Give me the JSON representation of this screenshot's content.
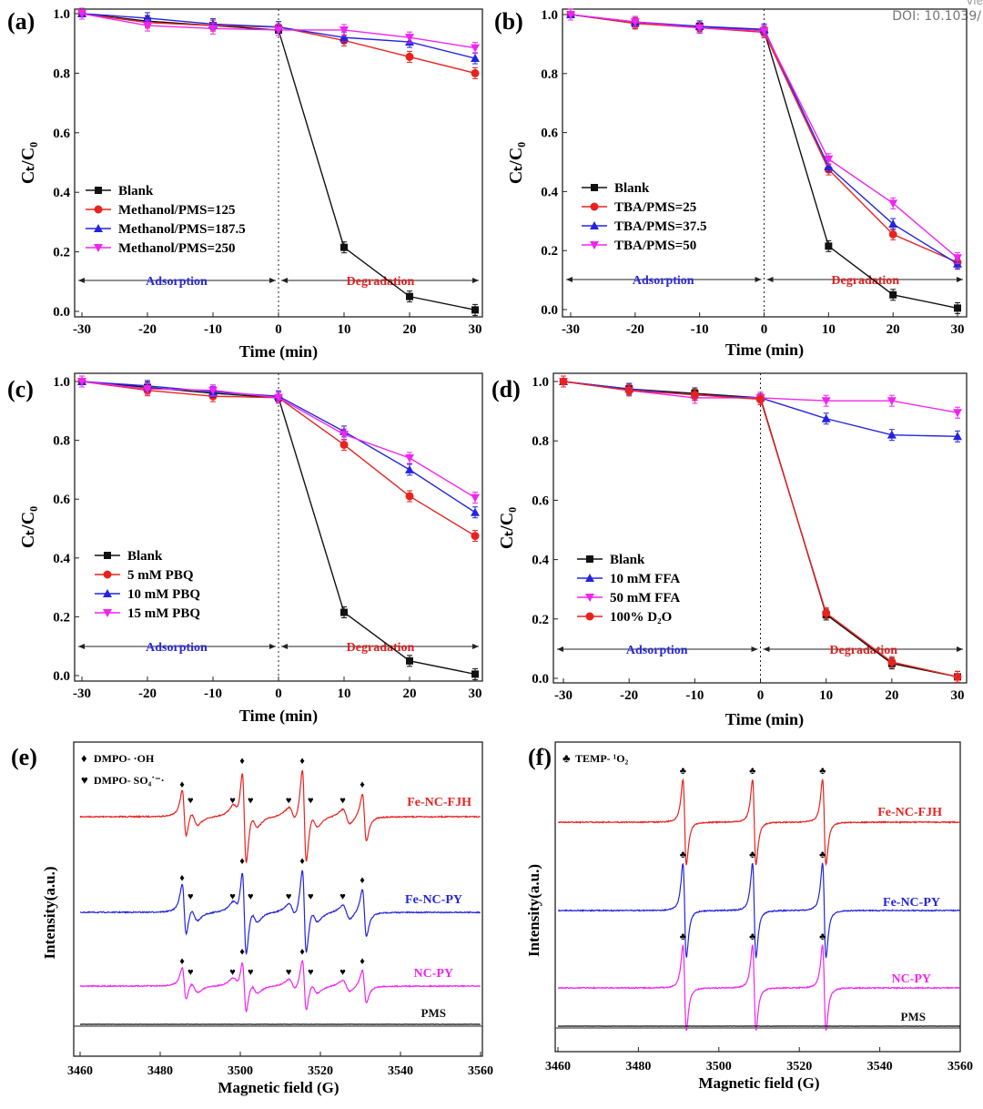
{
  "header": {
    "doi": "DOI: 10.1039/",
    "view_fragment": "Vie"
  },
  "colors": {
    "black": "#111111",
    "red": "#e8231f",
    "blue": "#2424e0",
    "magenta": "#f025f0",
    "annotation_blue": "#2a2ad8",
    "annotation_red": "#e02020"
  },
  "chart_data": [
    {
      "panel": "(a)",
      "type": "line",
      "xlabel": "Time (min)",
      "ylabel": "Cₜ/C₀",
      "xlim": [
        -30,
        30
      ],
      "ylim": [
        0,
        1.0
      ],
      "xticks": [
        "-30",
        "-20",
        "-10",
        "0",
        "10",
        "20",
        "30"
      ],
      "yticks": [
        "0.0",
        "0.2",
        "0.4",
        "0.6",
        "0.8",
        "1.0"
      ],
      "x": [
        -30,
        -20,
        -10,
        0,
        10,
        20,
        30
      ],
      "series": [
        {
          "name": "Blank",
          "marker": "square",
          "color": "#111111",
          "values": [
            1.0,
            0.975,
            0.96,
            0.945,
            0.215,
            0.05,
            0.005
          ]
        },
        {
          "name": "Methanol/PMS=125",
          "marker": "circle",
          "color": "#e8231f",
          "values": [
            1.0,
            0.97,
            0.96,
            0.955,
            0.91,
            0.855,
            0.8
          ]
        },
        {
          "name": "Methanol/PMS=187.5",
          "marker": "triangle-up",
          "color": "#2424e0",
          "values": [
            1.0,
            0.985,
            0.965,
            0.955,
            0.92,
            0.905,
            0.85
          ]
        },
        {
          "name": "Methanol/PMS=250",
          "marker": "triangle-down",
          "color": "#f025f0",
          "values": [
            1.0,
            0.96,
            0.95,
            0.945,
            0.945,
            0.92,
            0.885
          ]
        }
      ],
      "annotations": {
        "left": "Adsorption",
        "right": "Degradation"
      },
      "legend": "middle-left"
    },
    {
      "panel": "(b)",
      "type": "line",
      "xlabel": "Time (min)",
      "ylabel": "Cₜ/C₀",
      "xlim": [
        -30,
        30
      ],
      "ylim": [
        0,
        1.0
      ],
      "xticks": [
        "-30",
        "-20",
        "-10",
        "0",
        "10",
        "20",
        "30"
      ],
      "yticks": [
        "0.0",
        "0.2",
        "0.4",
        "0.6",
        "0.8",
        "1.0"
      ],
      "x": [
        -30,
        -20,
        -10,
        0,
        10,
        20,
        30
      ],
      "series": [
        {
          "name": "Blank",
          "marker": "square",
          "color": "#111111",
          "values": [
            1.0,
            0.97,
            0.96,
            0.945,
            0.215,
            0.05,
            0.005
          ]
        },
        {
          "name": "TBA/PMS=25",
          "marker": "circle",
          "color": "#e8231f",
          "values": [
            1.0,
            0.97,
            0.955,
            0.94,
            0.475,
            0.255,
            0.16
          ]
        },
        {
          "name": "TBA/PMS=37.5",
          "marker": "triangle-up",
          "color": "#2424e0",
          "values": [
            1.0,
            0.975,
            0.96,
            0.95,
            0.485,
            0.29,
            0.155
          ]
        },
        {
          "name": "TBA/PMS=50",
          "marker": "triangle-down",
          "color": "#f025f0",
          "values": [
            1.0,
            0.975,
            0.955,
            0.945,
            0.51,
            0.36,
            0.175
          ]
        }
      ],
      "annotations": {
        "left": "Adsorption",
        "right": "Degradation"
      },
      "legend": "middle-left"
    },
    {
      "panel": "(c)",
      "type": "line",
      "xlabel": "Time (min)",
      "ylabel": "Cₜ/C₀",
      "xlim": [
        -30,
        30
      ],
      "ylim": [
        0,
        1.0
      ],
      "xticks": [
        "-30",
        "-20",
        "-10",
        "0",
        "10",
        "20",
        "30"
      ],
      "yticks": [
        "0.0",
        "0.2",
        "0.4",
        "0.6",
        "0.8",
        "1.0"
      ],
      "x": [
        -30,
        -20,
        -10,
        0,
        10,
        20,
        30
      ],
      "series": [
        {
          "name": "Blank",
          "marker": "square",
          "color": "#111111",
          "values": [
            1.0,
            0.98,
            0.96,
            0.945,
            0.215,
            0.05,
            0.005
          ]
        },
        {
          "name": "5 mM PBQ",
          "marker": "circle",
          "color": "#e8231f",
          "values": [
            1.0,
            0.97,
            0.95,
            0.945,
            0.785,
            0.61,
            0.475
          ]
        },
        {
          "name": "10 mM PBQ",
          "marker": "triangle-up",
          "color": "#2424e0",
          "values": [
            1.0,
            0.985,
            0.965,
            0.95,
            0.83,
            0.7,
            0.555
          ]
        },
        {
          "name": "15 mM PBQ",
          "marker": "triangle-down",
          "color": "#f025f0",
          "values": [
            1.0,
            0.975,
            0.97,
            0.945,
            0.82,
            0.74,
            0.605
          ]
        }
      ],
      "annotations": {
        "left": "Adsorption",
        "right": "Degradation"
      },
      "legend": "lower-left"
    },
    {
      "panel": "(d)",
      "type": "line",
      "xlabel": "Time (min)",
      "ylabel": "Cₜ/C₀",
      "xlim": [
        -30,
        30
      ],
      "ylim": [
        0,
        1.0
      ],
      "xticks": [
        "-30",
        "-20",
        "-10",
        "0",
        "10",
        "20",
        "30"
      ],
      "yticks": [
        "0.0",
        "0.2",
        "0.4",
        "0.6",
        "0.8",
        "1.0"
      ],
      "x": [
        -30,
        -20,
        -10,
        0,
        10,
        20,
        30
      ],
      "series": [
        {
          "name": "Blank",
          "marker": "square",
          "color": "#111111",
          "values": [
            1.0,
            0.975,
            0.96,
            0.945,
            0.215,
            0.05,
            0.005
          ]
        },
        {
          "name": "10 mM FFA",
          "marker": "triangle-up",
          "color": "#2424e0",
          "values": [
            1.0,
            0.975,
            0.955,
            0.945,
            0.875,
            0.82,
            0.815
          ]
        },
        {
          "name": "50 mM FFA",
          "marker": "triangle-down",
          "color": "#f025f0",
          "values": [
            1.0,
            0.97,
            0.945,
            0.945,
            0.935,
            0.935,
            0.895
          ]
        },
        {
          "name": "100% D₂O",
          "marker": "circle",
          "color": "#e8231f",
          "values": [
            1.0,
            0.97,
            0.955,
            0.94,
            0.22,
            0.055,
            0.005
          ]
        }
      ],
      "annotations": {
        "left": "Adsorption",
        "right": "Degradation"
      },
      "legend": "lower-left"
    },
    {
      "panel": "(e)",
      "type": "line",
      "xlabel": "Magnetic field (G)",
      "ylabel": "Intensity(a.u.)",
      "xlim": [
        3460,
        3560
      ],
      "xticks": [
        "3460",
        "3480",
        "3500",
        "3520",
        "3540",
        "3560"
      ],
      "legend_items": [
        {
          "symbol": "♦",
          "label": "DMPO- ·OH"
        },
        {
          "symbol": "♥",
          "label": "DMPO- SO₄˙⁻·"
        }
      ],
      "oh_peaks_G": [
        3486,
        3501,
        3516,
        3531
      ],
      "so4_peaks_G": [
        3488.5,
        3499,
        3503.5,
        3513,
        3518.5,
        3526.5
      ],
      "series": [
        {
          "name": "Fe-NC-FJH",
          "color": "#e8231f",
          "oh_rel": [
            0.5,
            1,
            1,
            0.5
          ],
          "so4_rel": 0.16
        },
        {
          "name": "Fe-NC-PY",
          "color": "#2424e0",
          "oh_rel": [
            0.55,
            0.9,
            0.9,
            0.5
          ],
          "so4_rel": 0.15
        },
        {
          "name": "NC-PY",
          "color": "#f025f0",
          "oh_rel": [
            0.35,
            0.55,
            0.55,
            0.35
          ],
          "so4_rel": 0.12
        },
        {
          "name": "PMS",
          "color": "#111111",
          "oh_rel": [
            0,
            0,
            0,
            0
          ],
          "so4_rel": 0
        }
      ]
    },
    {
      "panel": "(f)",
      "type": "line",
      "xlabel": "Magnetic field (G)",
      "ylabel": "Intensity(a.u.)",
      "xlim": [
        3460,
        3560
      ],
      "xticks": [
        "3460",
        "3480",
        "3500",
        "3520",
        "3540",
        "3560"
      ],
      "legend_items": [
        {
          "symbol": "♣",
          "label": "TEMP- ¹O₂"
        }
      ],
      "peaks_G": [
        3491.5,
        3508.8,
        3526.2
      ],
      "series": [
        {
          "name": "Fe-NC-FJH",
          "color": "#e8231f",
          "rel": 0.9
        },
        {
          "name": "Fe-NC-PY",
          "color": "#2424e0",
          "rel": 1.0
        },
        {
          "name": "NC-PY",
          "color": "#f025f0",
          "rel": 0.9
        },
        {
          "name": "PMS",
          "color": "#111111",
          "rel": 0
        }
      ]
    }
  ]
}
